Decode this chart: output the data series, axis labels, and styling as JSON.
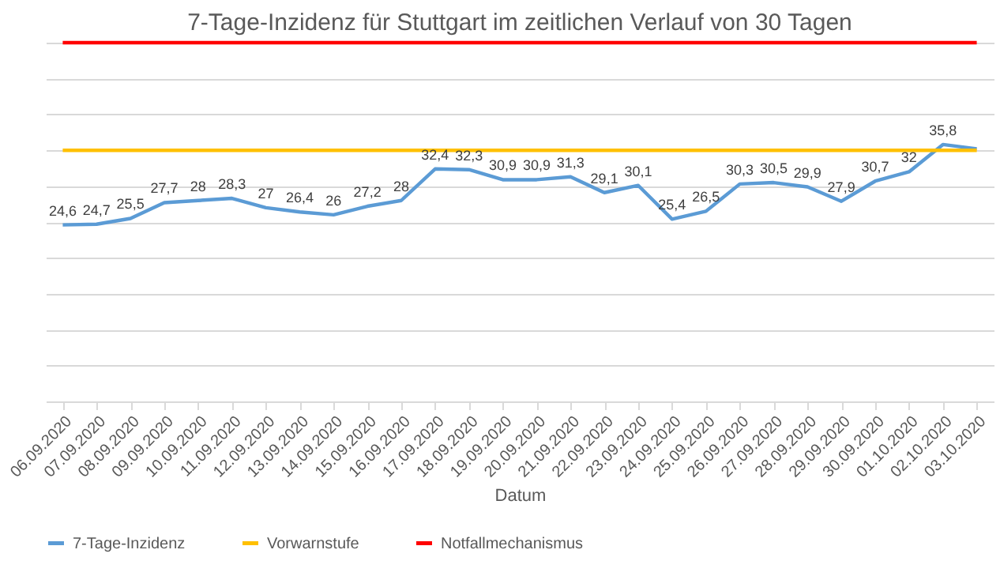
{
  "chart_data": {
    "type": "line",
    "title": "7-Tage-Inzidenz für Stuttgart im zeitlichen Verlauf von 30 Tagen",
    "xlabel": "Datum",
    "categories": [
      "06.09.2020",
      "07.09.2020",
      "08.09.2020",
      "09.09.2020",
      "10.09.2020",
      "11.09.2020",
      "12.09.2020",
      "13.09.2020",
      "14.09.2020",
      "15.09.2020",
      "16.09.2020",
      "17.09.2020",
      "18.09.2020",
      "19.09.2020",
      "20.09.2020",
      "21.09.2020",
      "22.09.2020",
      "23.09.2020",
      "24.09.2020",
      "25.09.2020",
      "26.09.2020",
      "27.09.2020",
      "28.09.2020",
      "29.09.2020",
      "30.09.2020",
      "01.10.2020",
      "02.10.2020",
      "03.10.2020"
    ],
    "series": [
      {
        "name": "7-Tage-Inzidenz",
        "color": "#5b9bd5",
        "values": [
          24.6,
          24.7,
          25.5,
          27.7,
          28,
          28.3,
          27,
          26.4,
          26,
          27.2,
          28,
          32.4,
          32.3,
          30.9,
          30.9,
          31.3,
          29.1,
          30.1,
          25.4,
          26.5,
          30.3,
          30.5,
          29.9,
          27.9,
          30.7,
          32,
          35.8,
          35.2
        ],
        "value_labels": [
          "24,6",
          "24,7",
          "25,5",
          "27,7",
          "28",
          "28,3",
          "27",
          "26,4",
          "26",
          "27,2",
          "28",
          "32,4",
          "32,3",
          "30,9",
          "30,9",
          "31,3",
          "29,1",
          "30,1",
          "25,4",
          "26,5",
          "30,3",
          "30,5",
          "29,9",
          "27,9",
          "30,7",
          "32",
          "35,8",
          null
        ]
      },
      {
        "name": "Vorwarnstufe",
        "color": "#ffc000",
        "values": [
          35,
          35,
          35,
          35,
          35,
          35,
          35,
          35,
          35,
          35,
          35,
          35,
          35,
          35,
          35,
          35,
          35,
          35,
          35,
          35,
          35,
          35,
          35,
          35,
          35,
          35,
          35,
          35
        ]
      },
      {
        "name": "Notfallmechanismus",
        "color": "#ff0000",
        "values": [
          50,
          50,
          50,
          50,
          50,
          50,
          50,
          50,
          50,
          50,
          50,
          50,
          50,
          50,
          50,
          50,
          50,
          50,
          50,
          50,
          50,
          50,
          50,
          50,
          50,
          50,
          50,
          50
        ]
      }
    ],
    "ylim": [
      0,
      50
    ],
    "yticks": [
      {
        "value": 0,
        "label": null
      },
      {
        "value": 5,
        "label": null
      },
      {
        "value": 10,
        "label": null
      },
      {
        "value": 15,
        "label": null
      },
      {
        "value": 20,
        "label": null
      },
      {
        "value": 25,
        "label": null
      },
      {
        "value": 30,
        "label": null
      },
      {
        "value": 35,
        "label": null
      },
      {
        "value": 40,
        "label": null
      },
      {
        "value": 45,
        "label": null
      },
      {
        "value": 50,
        "label": null
      }
    ],
    "tick_labels": "x",
    "grid": "y",
    "legend": "bottom",
    "marker": "none",
    "line_style": "solid"
  }
}
